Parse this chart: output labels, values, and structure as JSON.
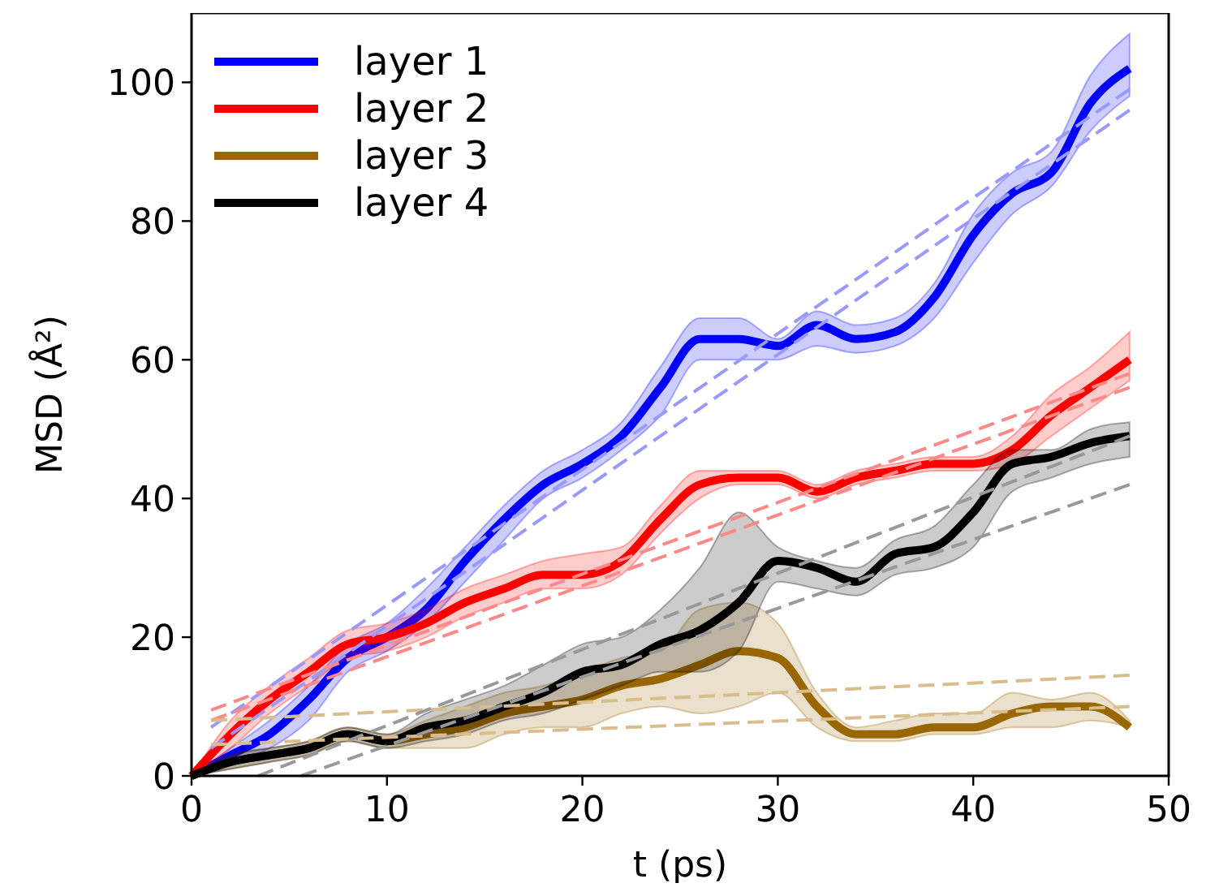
{
  "chart_data": {
    "type": "line",
    "xlabel": "t (ps)",
    "ylabel": "MSD (Å²)",
    "xlim": [
      0,
      50
    ],
    "xticks": [
      0,
      10,
      20,
      30,
      40,
      50
    ],
    "ylim": [
      0,
      110
    ],
    "yticks": [
      0,
      20,
      40,
      60,
      80,
      100
    ],
    "grid": false,
    "legend": "top left",
    "marker": "none",
    "line_style": "solid",
    "x": [
      0,
      2,
      4,
      6,
      8,
      10,
      12,
      14,
      16,
      18,
      20,
      22,
      24,
      26,
      28,
      30,
      32,
      34,
      36,
      38,
      40,
      42,
      44,
      46,
      48
    ],
    "series": [
      {
        "name": "layer 1",
        "color": "#0000ff",
        "values": [
          0,
          3,
          6,
          11,
          17,
          20,
          24,
          31,
          37,
          42,
          45,
          49,
          56,
          63,
          63,
          62,
          65,
          63,
          64,
          69,
          78,
          84,
          87,
          97,
          102
        ],
        "lower": [
          0,
          2,
          4,
          8,
          15,
          18,
          22,
          28,
          34,
          40,
          43,
          47,
          52,
          60,
          60,
          60,
          62,
          61,
          62,
          66,
          74,
          81,
          85,
          93,
          98
        ],
        "upper": [
          0,
          4,
          8,
          13,
          19,
          22,
          27,
          33,
          39,
          44,
          47,
          51,
          59,
          66,
          66,
          63,
          67,
          65,
          66,
          71,
          81,
          87,
          90,
          101,
          107
        ]
      },
      {
        "name": "layer 2",
        "color": "#ff0000",
        "values": [
          0,
          6,
          11,
          15,
          19,
          20,
          22,
          25,
          27,
          29,
          29,
          31,
          37,
          42,
          43,
          43,
          41,
          43,
          44,
          45,
          45,
          47,
          52,
          56,
          60
        ],
        "lower": [
          0,
          4,
          9,
          13,
          17,
          18,
          20,
          23,
          25,
          27,
          27,
          29,
          35,
          40,
          42,
          42,
          40,
          42,
          43,
          44,
          44,
          45,
          49,
          53,
          57
        ],
        "upper": [
          0,
          8,
          13,
          17,
          21,
          22,
          24,
          27,
          29,
          31,
          32,
          33,
          39,
          44,
          44,
          44,
          42,
          44,
          45,
          46,
          46,
          49,
          55,
          59,
          64
        ]
      },
      {
        "name": "layer 3",
        "color": "#996600",
        "values": [
          0,
          2,
          3,
          4,
          6,
          5,
          6,
          7,
          9,
          10,
          11,
          13,
          14,
          16,
          18,
          17,
          10,
          6,
          6,
          7,
          7,
          9,
          10,
          10,
          7
        ],
        "lower": [
          0,
          1,
          2,
          3,
          5,
          4,
          4,
          4,
          6,
          7,
          7,
          9,
          10,
          9,
          10,
          12,
          7,
          5,
          5,
          6,
          6,
          7,
          7,
          8,
          7
        ],
        "upper": [
          0,
          3,
          4,
          5,
          7,
          6,
          8,
          10,
          12,
          13,
          15,
          17,
          18,
          24,
          25,
          22,
          12,
          7,
          8,
          9,
          9,
          12,
          11,
          12,
          8
        ]
      },
      {
        "name": "layer 4",
        "color": "#000000",
        "values": [
          0,
          2,
          3,
          4,
          6,
          5,
          7,
          8,
          10,
          12,
          15,
          16,
          19,
          21,
          25,
          31,
          30,
          28,
          32,
          33,
          38,
          45,
          46,
          48,
          49
        ],
        "lower": [
          0,
          1,
          2,
          3,
          5,
          4,
          5,
          6,
          8,
          9,
          11,
          13,
          15,
          15,
          18,
          28,
          27,
          26,
          29,
          30,
          33,
          41,
          43,
          45,
          46
        ],
        "upper": [
          0,
          3,
          4,
          5,
          7,
          6,
          9,
          11,
          13,
          16,
          19,
          20,
          24,
          30,
          38,
          33,
          31,
          30,
          34,
          36,
          42,
          47,
          47,
          50,
          51
        ]
      },
      {
        "type": "line",
        "line_style": "dashed",
        "color": "#9999ff",
        "x": [
          1,
          48
        ],
        "values": [
          7,
          99
        ]
      },
      {
        "type": "line",
        "line_style": "dashed",
        "color": "#9999ff",
        "x": [
          1,
          48
        ],
        "values": [
          4,
          96
        ]
      },
      {
        "type": "line",
        "line_style": "dashed",
        "color": "#ff8888",
        "x": [
          1,
          48
        ],
        "values": [
          9.5,
          58
        ]
      },
      {
        "type": "line",
        "line_style": "dashed",
        "color": "#ff8888",
        "x": [
          1,
          48
        ],
        "values": [
          8,
          56
        ]
      },
      {
        "type": "line",
        "line_style": "dashed",
        "color": "#d9bd8c",
        "x": [
          1,
          48
        ],
        "values": [
          8,
          14.5
        ]
      },
      {
        "type": "line",
        "line_style": "dashed",
        "color": "#d9bd8c",
        "x": [
          1,
          48
        ],
        "values": [
          4.5,
          10
        ]
      },
      {
        "type": "line",
        "line_style": "dashed",
        "color": "#999999",
        "x": [
          3.4,
          48
        ],
        "values": [
          0,
          49
        ]
      },
      {
        "type": "line",
        "line_style": "dashed",
        "color": "#999999",
        "x": [
          5.6,
          48
        ],
        "values": [
          0,
          42
        ]
      }
    ]
  }
}
